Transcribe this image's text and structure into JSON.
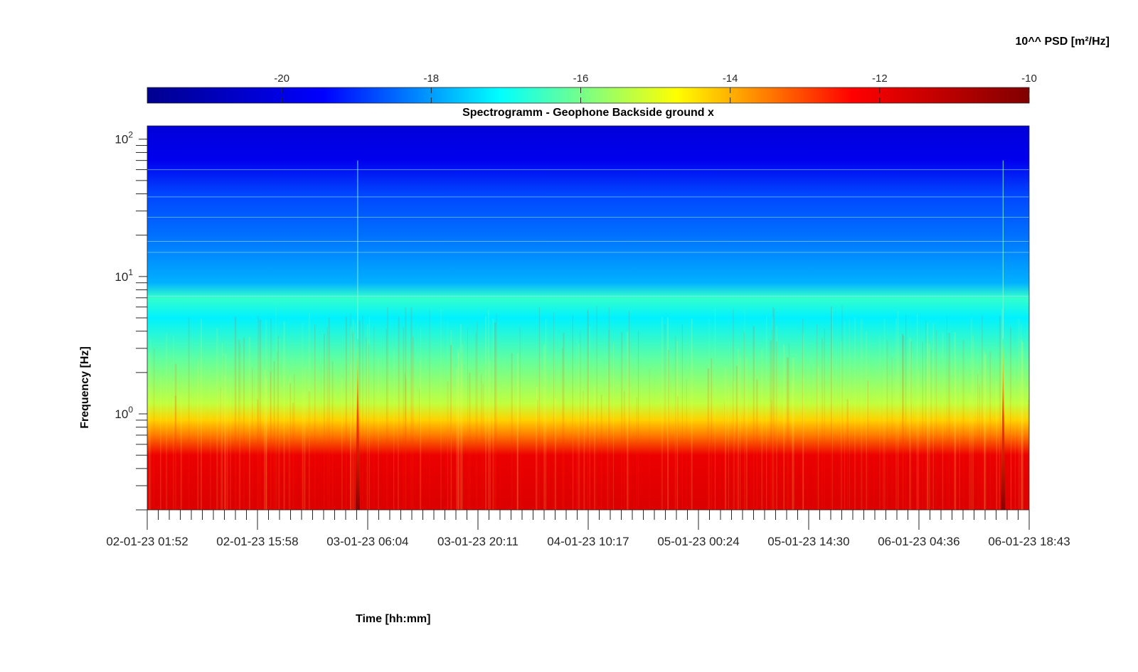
{
  "chart_data": {
    "type": "heatmap",
    "title": "Spectrogramm - Geophone Backside ground x",
    "xlabel": "Time [hh:mm]",
    "ylabel": "Frequency [Hz]",
    "colorbar": {
      "label": "10^^ PSD [m²/Hz]",
      "range": [
        -21.8,
        -10
      ],
      "ticks": [
        "-20",
        "-18",
        "-16",
        "-14",
        "-12",
        "-10"
      ],
      "tick_values": [
        -20,
        -18,
        -16,
        -14,
        -12,
        -10
      ],
      "colormap": "jet"
    },
    "x_ticks": [
      "02-01-23 01:52",
      "02-01-23 15:58",
      "03-01-23 06:04",
      "03-01-23 20:11",
      "04-01-23 10:17",
      "05-01-23 00:24",
      "05-01-23 14:30",
      "06-01-23 04:36",
      "06-01-23 18:43"
    ],
    "xlim": [
      "02-01-23 01:52",
      "06-01-23 18:43"
    ],
    "y_scale": "log",
    "ylim": [
      0.2,
      125
    ],
    "y_ticks": [
      {
        "value": 1,
        "base": "10",
        "exp": "0"
      },
      {
        "value": 10,
        "base": "10",
        "exp": "1"
      },
      {
        "value": 100,
        "base": "10",
        "exp": "2"
      }
    ],
    "psd_profile": [
      {
        "frequency": 0.2,
        "psd_log10": -11.7
      },
      {
        "frequency": 0.5,
        "psd_log10": -12.0
      },
      {
        "frequency": 0.7,
        "psd_log10": -13.5
      },
      {
        "frequency": 0.9,
        "psd_log10": -14.3
      },
      {
        "frequency": 1.2,
        "psd_log10": -15.3
      },
      {
        "frequency": 2.5,
        "psd_log10": -16.2
      },
      {
        "frequency": 5,
        "psd_log10": -17.2
      },
      {
        "frequency": 7,
        "psd_log10": -16.6
      },
      {
        "frequency": 9,
        "psd_log10": -17.8
      },
      {
        "frequency": 20,
        "psd_log10": -18.4
      },
      {
        "frequency": 40,
        "psd_log10": -18.8
      },
      {
        "frequency": 70,
        "psd_log10": -19.8
      },
      {
        "frequency": 125,
        "psd_log10": -20.2
      }
    ],
    "events": [
      {
        "time": "03-01-23 04:48",
        "psd_log10": -10.6,
        "frequency_range": [
          0.2,
          3.5
        ]
      },
      {
        "time": "06-01-23 15:23",
        "psd_log10": -10.6,
        "frequency_range": [
          0.2,
          3.5
        ]
      }
    ],
    "grid": false
  },
  "colors": {
    "jet": [
      "#00008f",
      "#0000ff",
      "#00ffff",
      "#ffff00",
      "#ff0000",
      "#800000"
    ]
  }
}
